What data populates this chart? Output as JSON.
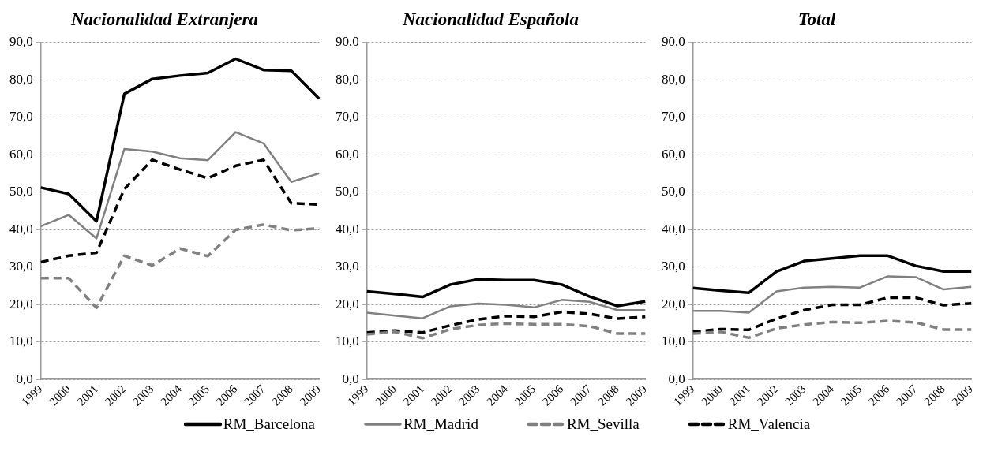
{
  "chart_data": [
    {
      "type": "line",
      "title": "Nacionalidad Extranjera",
      "categories": [
        "1999",
        "2000",
        "2001",
        "2002",
        "2003",
        "2004",
        "2005",
        "2006",
        "2007",
        "2008",
        "2009"
      ],
      "ylim": [
        0,
        90
      ],
      "yticks": [
        {
          "value": 0,
          "label": "0,0"
        },
        {
          "value": 10,
          "label": "10,0"
        },
        {
          "value": 20,
          "label": "20,0"
        },
        {
          "value": 30,
          "label": "30,0"
        },
        {
          "value": 40,
          "label": "40,0"
        },
        {
          "value": 50,
          "label": "50,0"
        },
        {
          "value": 60,
          "label": "60,0"
        },
        {
          "value": 70,
          "label": "70,0"
        },
        {
          "value": 80,
          "label": "80,0"
        },
        {
          "value": 90,
          "label": "90,0"
        }
      ],
      "grid": "y",
      "legend": "bottom",
      "series": [
        {
          "name": "RM_Barcelona",
          "color": "#000000",
          "line_style": "solid",
          "values": [
            51.2,
            49.5,
            42.2,
            76.2,
            80.2,
            81.1,
            81.8,
            85.6,
            82.6,
            82.4,
            74.9
          ]
        },
        {
          "name": "RM_Madrid",
          "color": "#808080",
          "line_style": "solid",
          "values": [
            40.9,
            43.9,
            37.6,
            61.5,
            60.8,
            59.0,
            58.5,
            66.0,
            63.0,
            52.7,
            55.0
          ]
        },
        {
          "name": "RM_Sevilla",
          "color": "#808080",
          "line_style": "dashed",
          "values": [
            27.0,
            27.0,
            19.1,
            33.0,
            30.4,
            34.9,
            32.9,
            39.9,
            41.3,
            39.8,
            40.3
          ]
        },
        {
          "name": "RM_Valencia",
          "color": "#000000",
          "line_style": "dashed",
          "values": [
            31.3,
            33.0,
            33.8,
            50.8,
            58.6,
            56.0,
            53.7,
            57.0,
            58.6,
            47.0,
            46.7
          ]
        }
      ]
    },
    {
      "type": "line",
      "title": "Nacionalidad Española",
      "categories": [
        "1999",
        "2000",
        "2001",
        "2002",
        "2003",
        "2004",
        "2005",
        "2006",
        "2007",
        "2008",
        "2009"
      ],
      "ylim": [
        0,
        90
      ],
      "yticks": [
        {
          "value": 0,
          "label": "0,0"
        },
        {
          "value": 10,
          "label": "10,0"
        },
        {
          "value": 20,
          "label": "20,0"
        },
        {
          "value": 30,
          "label": "30,0"
        },
        {
          "value": 40,
          "label": "40,0"
        },
        {
          "value": 50,
          "label": "50,0"
        },
        {
          "value": 60,
          "label": "60,0"
        },
        {
          "value": 70,
          "label": "70,0"
        },
        {
          "value": 80,
          "label": "80,0"
        },
        {
          "value": 90,
          "label": "90,0"
        }
      ],
      "grid": "y",
      "series": [
        {
          "color": "#000000",
          "line_style": "solid",
          "values": [
            23.5,
            22.8,
            22.0,
            25.3,
            26.7,
            26.5,
            26.5,
            25.3,
            22.1,
            19.6,
            20.8
          ]
        },
        {
          "color": "#808080",
          "line_style": "solid",
          "values": [
            17.8,
            17.0,
            16.3,
            19.5,
            20.2,
            19.9,
            19.2,
            21.2,
            20.7,
            18.5,
            18.5
          ]
        },
        {
          "color": "#808080",
          "line_style": "dashed",
          "values": [
            12.0,
            12.7,
            11.0,
            13.4,
            14.5,
            14.9,
            14.7,
            14.7,
            14.2,
            12.2,
            12.2
          ]
        },
        {
          "color": "#000000",
          "line_style": "dashed",
          "values": [
            12.5,
            13.0,
            12.5,
            14.4,
            16.0,
            16.9,
            16.7,
            18.0,
            17.5,
            16.2,
            16.7
          ]
        }
      ]
    },
    {
      "type": "line",
      "title": "Total",
      "categories": [
        "1999",
        "2000",
        "2001",
        "2002",
        "2003",
        "2004",
        "2005",
        "2006",
        "2007",
        "2008",
        "2009"
      ],
      "ylim": [
        0,
        90
      ],
      "yticks": [
        {
          "value": 0,
          "label": "0,0"
        },
        {
          "value": 10,
          "label": "10,0"
        },
        {
          "value": 20,
          "label": "20,0"
        },
        {
          "value": 30,
          "label": "30,0"
        },
        {
          "value": 40,
          "label": "40,0"
        },
        {
          "value": 50,
          "label": "50,0"
        },
        {
          "value": 60,
          "label": "60,0"
        },
        {
          "value": 70,
          "label": "70,0"
        },
        {
          "value": 80,
          "label": "80,0"
        },
        {
          "value": 90,
          "label": "90,0"
        }
      ],
      "grid": "y",
      "series": [
        {
          "color": "#000000",
          "line_style": "solid",
          "values": [
            24.4,
            23.7,
            23.1,
            28.8,
            31.6,
            32.3,
            33.0,
            33.0,
            30.3,
            28.8,
            28.8
          ]
        },
        {
          "color": "#808080",
          "line_style": "solid",
          "values": [
            18.3,
            18.3,
            17.8,
            23.5,
            24.5,
            24.7,
            24.5,
            27.5,
            27.3,
            24.0,
            24.7
          ]
        },
        {
          "color": "#808080",
          "line_style": "dashed",
          "values": [
            12.2,
            12.7,
            11.1,
            13.6,
            14.6,
            15.3,
            15.1,
            15.6,
            15.2,
            13.3,
            13.3
          ]
        },
        {
          "color": "#000000",
          "line_style": "dashed",
          "values": [
            12.7,
            13.4,
            13.2,
            16.2,
            18.5,
            19.9,
            19.9,
            21.8,
            21.8,
            19.8,
            20.3
          ]
        }
      ]
    }
  ]
}
